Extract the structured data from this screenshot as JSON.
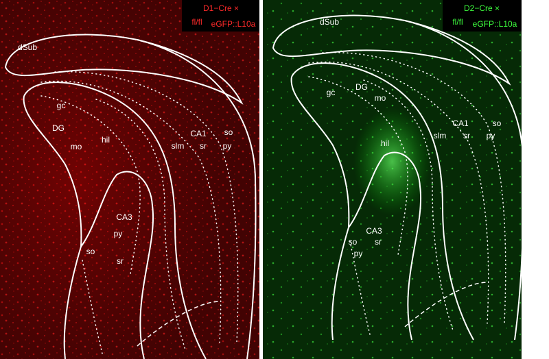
{
  "panels": [
    {
      "legend": {
        "line1": "D1−Cre ×",
        "prefix": "fl/fl",
        "line2": "eGFP::L10a"
      },
      "labels": [
        "dSub",
        "gc",
        "DG",
        "mo",
        "hil",
        "CA1",
        "so",
        "slm",
        "sr",
        "py",
        "CA3",
        "py",
        "so",
        "sr"
      ]
    },
    {
      "legend": {
        "line1": "D2−Cre ×",
        "prefix": "fl/fl",
        "line2": "eGFP::L10a"
      },
      "labels": [
        "dSub",
        "DG",
        "gc",
        "mo",
        "CA1",
        "so",
        "slm",
        "sr",
        "py",
        "hil",
        "CA3",
        "so",
        "sr",
        "py"
      ]
    }
  ]
}
